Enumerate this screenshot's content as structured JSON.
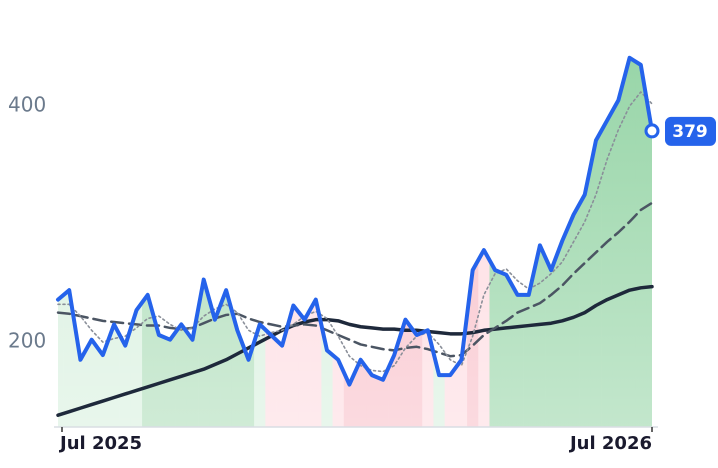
{
  "chart_data": {
    "type": "line",
    "categories": [
      "Jul 2025",
      null,
      null,
      null,
      null,
      null,
      null,
      null,
      null,
      null,
      null,
      null,
      null,
      null,
      null,
      null,
      null,
      null,
      null,
      null,
      null,
      null,
      null,
      null,
      null,
      null,
      null,
      null,
      null,
      null,
      null,
      null,
      null,
      null,
      null,
      null,
      null,
      null,
      null,
      null,
      null,
      null,
      null,
      null,
      null,
      null,
      null,
      null,
      null,
      null,
      null,
      null,
      null,
      "Jul 2026"
    ],
    "ylim": [
      128,
      490
    ],
    "yticks": [
      200,
      400
    ],
    "fill_colors": [
      "#d5efdc",
      "#d5efdc",
      "#d5efdc",
      "#d5efdc",
      "#d5efdc",
      "#d5efdc",
      "#d5efdc",
      "#d5efdc",
      "#a8dbb4",
      "#a8dbb4",
      "#a8dbb4",
      "#a8dbb4",
      "#a8dbb4",
      "#a8dbb4",
      "#a8dbb4",
      "#a8dbb4",
      "#a8dbb4",
      "#a8dbb4",
      "#d5efdc",
      "#fdd9df",
      "#fdd9df",
      "#fdd9df",
      "#fdd9df",
      "#fdd9df",
      "#d5efdc",
      "#fdd9df",
      "#f8bcc6",
      "#f8bcc6",
      "#f8bcc6",
      "#f8bcc6",
      "#f8bcc6",
      "#f8bcc6",
      "#f8bcc6",
      "#fdd9df",
      "#d5efdc",
      "#fdd9df",
      "#fdd9df",
      "#f8bcc6",
      "#fdd9df",
      "#92d3a3",
      "#92d3a3",
      "#92d3a3",
      "#92d3a3",
      "#92d3a3",
      "#92d3a3",
      "#92d3a3",
      "#92d3a3",
      "#92d3a3",
      "#92d3a3",
      "#92d3a3",
      "#92d3a3",
      "#92d3a3",
      "#92d3a3",
      "#92d3a3"
    ],
    "series": [
      {
        "color": "#1e293b",
        "style": "solid",
        "width": 3.5,
        "values": [
          138,
          141,
          144,
          147,
          150,
          153,
          156,
          159,
          162,
          165,
          168,
          171,
          174,
          177,
          181,
          185,
          190,
          195,
          200,
          205,
          210,
          214,
          217,
          219,
          219,
          218,
          215,
          213,
          212,
          211,
          211,
          210,
          210,
          209,
          208,
          207,
          207,
          208,
          210,
          211,
          212,
          213,
          214,
          215,
          216,
          218,
          221,
          225,
          231,
          236,
          240,
          244,
          246,
          247
        ]
      },
      {
        "color": "#4b5563",
        "style": "dashed",
        "width": 2.5,
        "values": [
          225,
          224,
          222,
          220,
          218,
          217,
          216,
          215,
          214,
          214,
          212,
          211,
          212,
          216,
          220,
          223,
          224,
          220,
          217,
          215,
          213,
          214,
          215,
          214,
          210,
          206,
          202,
          198,
          196,
          194,
          193,
          195,
          196,
          194,
          191,
          188,
          189,
          197,
          206,
          212,
          218,
          225,
          229,
          233,
          240,
          248,
          258,
          267,
          276,
          285,
          293,
          302,
          312,
          318
        ]
      },
      {
        "color": "#8a8f99",
        "style": "dotted",
        "width": 1.6,
        "values": [
          232,
          232,
          222,
          210,
          200,
          203,
          205,
          212,
          220,
          222,
          215,
          210,
          212,
          222,
          228,
          232,
          225,
          210,
          205,
          208,
          210,
          215,
          222,
          226,
          220,
          205,
          188,
          180,
          176,
          175,
          180,
          195,
          205,
          208,
          198,
          185,
          180,
          205,
          240,
          258,
          262,
          252,
          245,
          250,
          258,
          268,
          285,
          302,
          325,
          355,
          380,
          400,
          412,
          402
        ]
      },
      {
        "color": "#2563eb",
        "style": "solid",
        "width": 4,
        "values": [
          236,
          244,
          185,
          202,
          189,
          215,
          197,
          227,
          240,
          206,
          202,
          215,
          202,
          253,
          219,
          244,
          210,
          185,
          215,
          206,
          197,
          231,
          219,
          236,
          193,
          185,
          164,
          185,
          172,
          168,
          189,
          219,
          206,
          210,
          172,
          172,
          185,
          261,
          278,
          261,
          257,
          240,
          240,
          282,
          261,
          286,
          308,
          325,
          371,
          388,
          405,
          441,
          435,
          379
        ]
      }
    ]
  }
}
